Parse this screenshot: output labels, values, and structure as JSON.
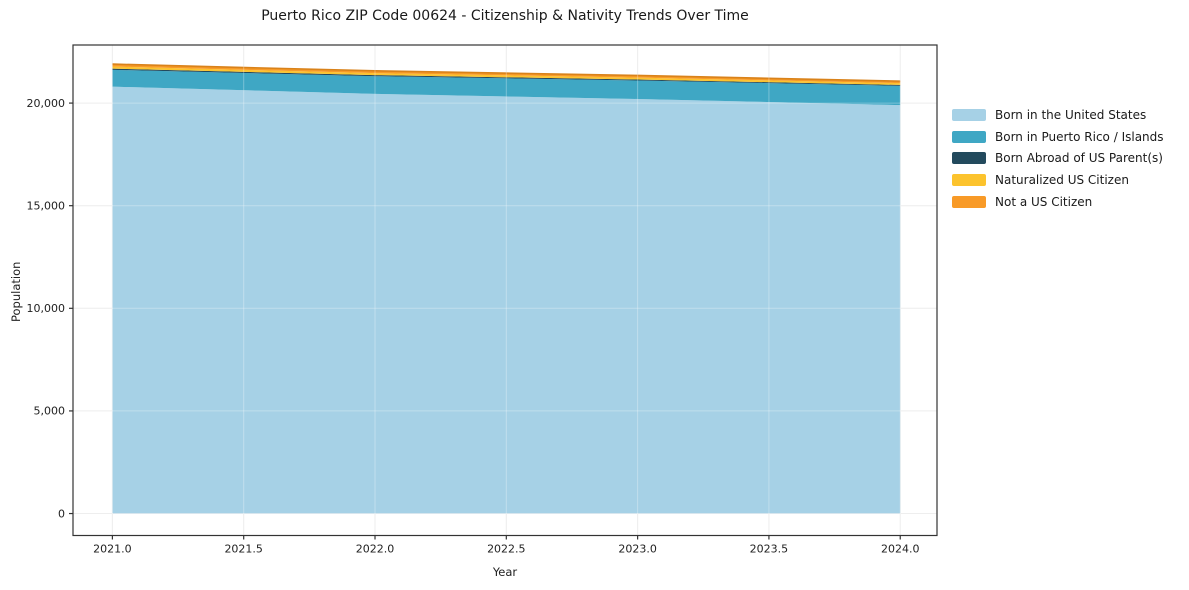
{
  "title": "Puerto Rico ZIP Code 00624 - Citizenship & Nativity Trends Over Time",
  "chart_data": {
    "type": "area",
    "stacked": true,
    "title": "Puerto Rico ZIP Code 00624 - Citizenship & Nativity Trends Over Time",
    "xlabel": "Year",
    "ylabel": "Population",
    "x": [
      2021,
      2022,
      2023,
      2024
    ],
    "series": [
      {
        "name": "Born in the United States",
        "color": "#a6d1e6",
        "values": [
          20800,
          20450,
          20200,
          19900
        ]
      },
      {
        "name": "Born in Puerto Rico / Islands",
        "color": "#3fa7c4",
        "values": [
          820,
          860,
          900,
          940
        ]
      },
      {
        "name": "Born Abroad of US Parent(s)",
        "color": "#234a5d",
        "values": [
          60,
          55,
          50,
          45
        ]
      },
      {
        "name": "Naturalized US Citizen",
        "color": "#fcc32d",
        "values": [
          100,
          95,
          90,
          85
        ]
      },
      {
        "name": "Not a US Citizen",
        "color": "#f89a27",
        "values": [
          120,
          110,
          105,
          100
        ]
      }
    ],
    "x_ticks": [
      {
        "value": 2021.0,
        "label": "2021.0"
      },
      {
        "value": 2021.5,
        "label": "2021.5"
      },
      {
        "value": 2022.0,
        "label": "2022.0"
      },
      {
        "value": 2022.5,
        "label": "2022.5"
      },
      {
        "value": 2023.0,
        "label": "2023.0"
      },
      {
        "value": 2023.5,
        "label": "2023.5"
      },
      {
        "value": 2024.0,
        "label": "2024.0"
      }
    ],
    "y_ticks": [
      {
        "value": 0,
        "label": "0"
      },
      {
        "value": 5000,
        "label": "5,000"
      },
      {
        "value": 10000,
        "label": "10,000"
      },
      {
        "value": 15000,
        "label": "15,000"
      },
      {
        "value": 20000,
        "label": "20,000"
      }
    ],
    "xlim": [
      2020.85,
      2024.14
    ],
    "ylim": [
      -1070,
      22830
    ],
    "grid": true,
    "legend_position": "right",
    "top_edge_color": "#d9821a",
    "spine_color": "#333333",
    "tick_label_color": "#222222",
    "grid_under_color": "#e7e7e7",
    "grid_over_color": "rgba(255,255,255,0.30)"
  }
}
